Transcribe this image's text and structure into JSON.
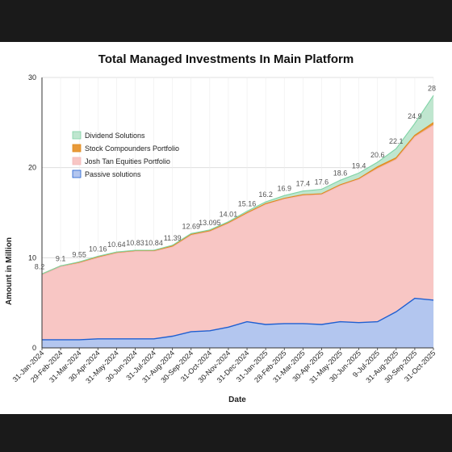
{
  "chart_data": {
    "type": "area",
    "stacked": true,
    "title": "Total Managed Investments In Main Platform",
    "xlabel": "Date",
    "ylabel": "Amount in Million",
    "ylim": [
      0,
      30
    ],
    "yticks": [
      "0",
      "10",
      "20",
      "30"
    ],
    "grid": true,
    "legend_position": "left",
    "categories": [
      "31-Jan-2024",
      "29-Feb-2024",
      "31-Mar-2024",
      "30-Apr-2024",
      "31-May-2024",
      "30-Jun-2024",
      "31-Jul-2024",
      "31-Aug-2024",
      "30-Sep-2024",
      "31-Oct-2024",
      "30-Nov-2024",
      "31-Dec-2024",
      "31-Jan-2025",
      "28-Feb-2025",
      "31-Mar-2025",
      "30-Apr-2025",
      "31-May-2025",
      "30-Jun-2025",
      "9-Jul-2025",
      "31-Aug-2025",
      "30-Sep-2025",
      "31-Oct-2025"
    ],
    "totals": [
      8.2,
      9.1,
      9.55,
      10.16,
      10.64,
      10.83,
      10.84,
      11.39,
      12.69,
      13.095,
      14.01,
      15.16,
      16.2,
      16.9,
      17.4,
      17.6,
      18.6,
      19.4,
      20.6,
      22.1,
      24.9,
      28
    ],
    "total_labels": [
      "8.2",
      "9.1",
      "9.55",
      "10.16",
      "10.64",
      "10.83",
      "10.84",
      "11.39",
      "12.69",
      "13.095",
      "14.01",
      "15.16",
      "16.2",
      "16.9",
      "17.4",
      "17.6",
      "18.6",
      "19.4",
      "20.6",
      "22.1",
      "24.9",
      "28"
    ],
    "series": [
      {
        "name": "Passive solutions",
        "color": "#1f5fd1",
        "fill": "#b3c6ef",
        "values": [
          0.9,
          0.9,
          0.9,
          1.0,
          1.0,
          1.0,
          1.0,
          1.3,
          1.8,
          1.9,
          2.3,
          2.9,
          2.6,
          2.7,
          2.7,
          2.6,
          2.9,
          2.8,
          2.9,
          4.0,
          5.5,
          5.3
        ]
      },
      {
        "name": "Josh Tan Equities Portfolio",
        "color": "#f2b8b8",
        "fill": "#f8c6c4",
        "values": [
          7.2,
          8.1,
          8.5,
          9.0,
          9.5,
          9.7,
          9.7,
          9.9,
          10.7,
          11.0,
          11.5,
          12.0,
          13.3,
          13.8,
          14.2,
          14.4,
          15.1,
          15.9,
          17.0,
          16.9,
          17.9,
          19.4
        ]
      },
      {
        "name": "Stock Compounders Portfolio",
        "color": "#e08a1e",
        "fill": "#e89a3a",
        "values": [
          0.1,
          0.1,
          0.1,
          0.1,
          0.1,
          0.1,
          0.1,
          0.1,
          0.1,
          0.1,
          0.1,
          0.1,
          0.1,
          0.1,
          0.1,
          0.1,
          0.1,
          0.1,
          0.2,
          0.2,
          0.2,
          0.3
        ]
      },
      {
        "name": "Dividend Solutions",
        "color": "#7fd3a6",
        "fill": "#bfe6cf",
        "values": [
          0.0,
          0.0,
          0.05,
          0.06,
          0.04,
          0.03,
          0.04,
          0.09,
          0.09,
          0.095,
          0.11,
          0.16,
          0.2,
          0.3,
          0.4,
          0.5,
          0.5,
          0.6,
          0.5,
          1.0,
          1.3,
          3.0
        ]
      }
    ],
    "legend_order": [
      "Dividend Solutions",
      "Stock Compounders Portfolio",
      "Josh Tan Equities Portfolio",
      "Passive solutions"
    ]
  }
}
